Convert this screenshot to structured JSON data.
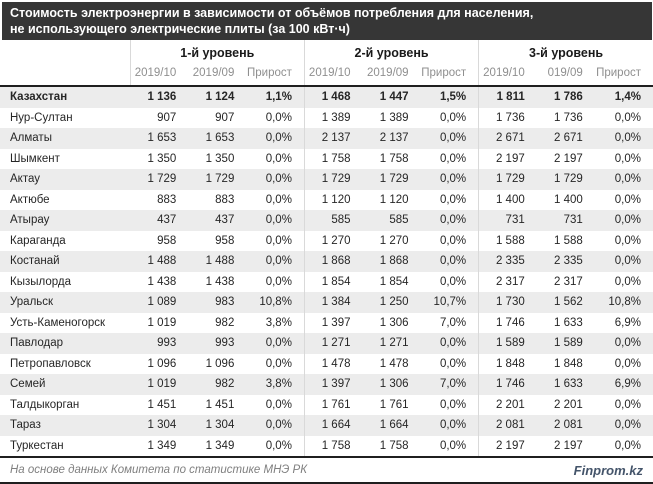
{
  "title": {
    "line1": "Стоимость электроэнергии в зависимости от объёмов потребления для населения,",
    "line2": "не использующего электрические плиты (за 100 кВт·ч)"
  },
  "chart_data": {
    "type": "table",
    "title": "Стоимость электроэнергии в зависимости от объёмов потребления для населения, не использующего электрические плиты (за 100 кВт·ч)",
    "column_groups": [
      "1-й уровень",
      "2-й уровень",
      "3-й уровень"
    ],
    "subcolumns_by_group": [
      [
        "2019/10",
        "2019/09",
        "Прирост"
      ],
      [
        "2019/10",
        "2019/09",
        "Прирост"
      ],
      [
        "2019/10",
        "019/09",
        "Прирост"
      ]
    ],
    "rows": [
      {
        "name": "Казахстан",
        "bold": true,
        "values": [
          "1 136",
          "1 124",
          "1,1%",
          "1 468",
          "1 447",
          "1,5%",
          "1 811",
          "1 786",
          "1,4%"
        ]
      },
      {
        "name": "Нур-Султан",
        "bold": false,
        "values": [
          "907",
          "907",
          "0,0%",
          "1 389",
          "1 389",
          "0,0%",
          "1 736",
          "1 736",
          "0,0%"
        ]
      },
      {
        "name": "Алматы",
        "bold": false,
        "values": [
          "1 653",
          "1 653",
          "0,0%",
          "2 137",
          "2 137",
          "0,0%",
          "2 671",
          "2 671",
          "0,0%"
        ]
      },
      {
        "name": "Шымкент",
        "bold": false,
        "values": [
          "1 350",
          "1 350",
          "0,0%",
          "1 758",
          "1 758",
          "0,0%",
          "2 197",
          "2 197",
          "0,0%"
        ]
      },
      {
        "name": "Актау",
        "bold": false,
        "values": [
          "1 729",
          "1 729",
          "0,0%",
          "1 729",
          "1 729",
          "0,0%",
          "1 729",
          "1 729",
          "0,0%"
        ]
      },
      {
        "name": "Актюбе",
        "bold": false,
        "values": [
          "883",
          "883",
          "0,0%",
          "1 120",
          "1 120",
          "0,0%",
          "1 400",
          "1 400",
          "0,0%"
        ]
      },
      {
        "name": "Атырау",
        "bold": false,
        "values": [
          "437",
          "437",
          "0,0%",
          "585",
          "585",
          "0,0%",
          "731",
          "731",
          "0,0%"
        ]
      },
      {
        "name": "Караганда",
        "bold": false,
        "values": [
          "958",
          "958",
          "0,0%",
          "1 270",
          "1 270",
          "0,0%",
          "1 588",
          "1 588",
          "0,0%"
        ]
      },
      {
        "name": "Костанай",
        "bold": false,
        "values": [
          "1 488",
          "1 488",
          "0,0%",
          "1 868",
          "1 868",
          "0,0%",
          "2 335",
          "2 335",
          "0,0%"
        ]
      },
      {
        "name": "Кызылорда",
        "bold": false,
        "values": [
          "1 438",
          "1 438",
          "0,0%",
          "1 854",
          "1 854",
          "0,0%",
          "2 317",
          "2 317",
          "0,0%"
        ]
      },
      {
        "name": "Уральск",
        "bold": false,
        "values": [
          "1 089",
          "983",
          "10,8%",
          "1 384",
          "1 250",
          "10,7%",
          "1 730",
          "1 562",
          "10,8%"
        ]
      },
      {
        "name": "Усть-Каменогорск",
        "bold": false,
        "values": [
          "1 019",
          "982",
          "3,8%",
          "1 397",
          "1 306",
          "7,0%",
          "1 746",
          "1 633",
          "6,9%"
        ]
      },
      {
        "name": "Павлодар",
        "bold": false,
        "values": [
          "993",
          "993",
          "0,0%",
          "1 271",
          "1 271",
          "0,0%",
          "1 589",
          "1 589",
          "0,0%"
        ]
      },
      {
        "name": "Петропавловск",
        "bold": false,
        "values": [
          "1 096",
          "1 096",
          "0,0%",
          "1 478",
          "1 478",
          "0,0%",
          "1 848",
          "1 848",
          "0,0%"
        ]
      },
      {
        "name": "Семей",
        "bold": false,
        "values": [
          "1 019",
          "982",
          "3,8%",
          "1 397",
          "1 306",
          "7,0%",
          "1 746",
          "1 633",
          "6,9%"
        ]
      },
      {
        "name": "Талдыкорган",
        "bold": false,
        "values": [
          "1 451",
          "1 451",
          "0,0%",
          "1 761",
          "1 761",
          "0,0%",
          "2 201",
          "2 201",
          "0,0%"
        ]
      },
      {
        "name": "Тараз",
        "bold": false,
        "values": [
          "1 304",
          "1 304",
          "0,0%",
          "1 664",
          "1 664",
          "0,0%",
          "2 081",
          "2 081",
          "0,0%"
        ]
      },
      {
        "name": "Туркестан",
        "bold": false,
        "values": [
          "1 349",
          "1 349",
          "0,0%",
          "1 758",
          "1 758",
          "0,0%",
          "2 197",
          "2 197",
          "0,0%"
        ]
      }
    ]
  },
  "footer": {
    "source": "На основе данных Комитета по статистике МНЭ РК",
    "brand": "Finprom.kz"
  },
  "colors": {
    "titlebar_bg": "#363636",
    "stripe": "#ececec",
    "border_dark": "#1f1f1f",
    "group_divider": "#d9d9d9",
    "subheader_text": "#8f8f8f",
    "footer_text": "#7f7f7f",
    "brand_text": "#44546a"
  }
}
